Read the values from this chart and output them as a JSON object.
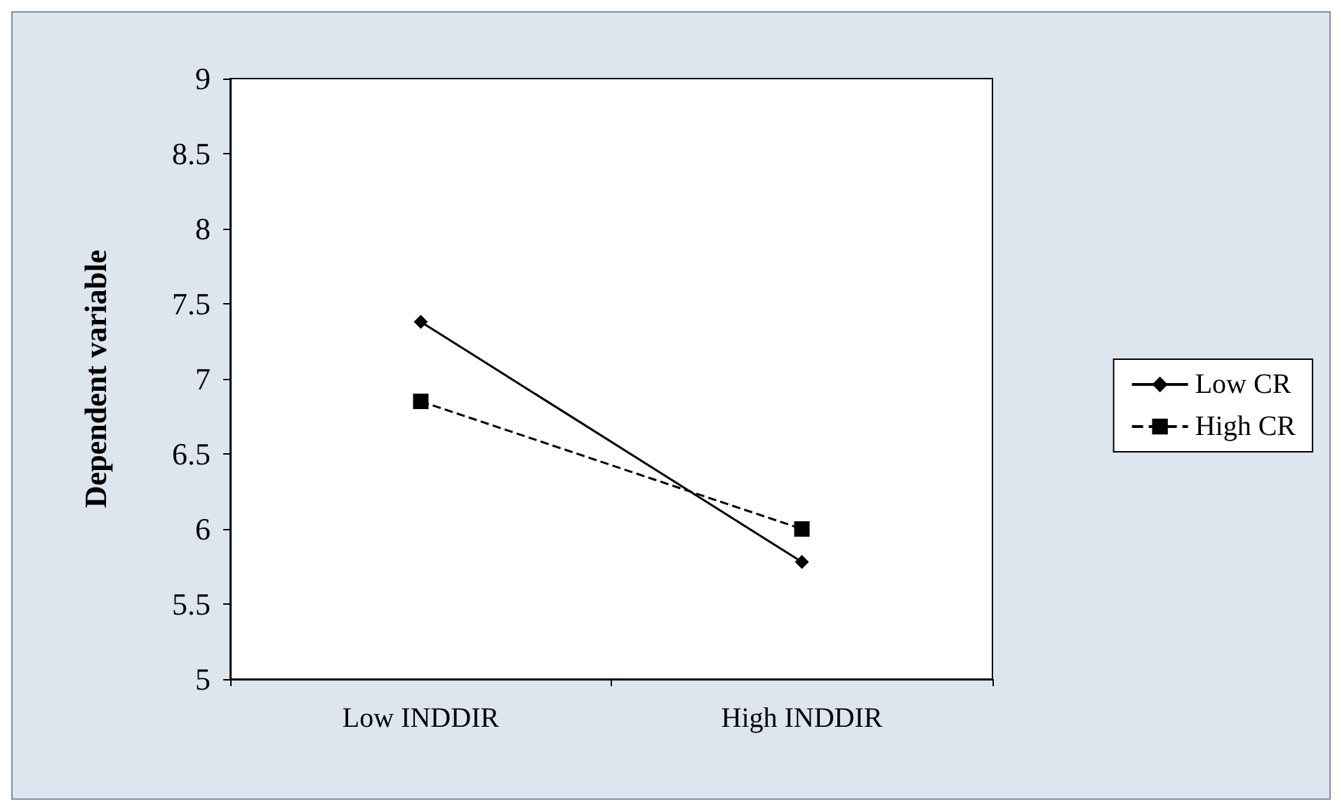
{
  "chart_data": {
    "type": "line",
    "ylabel": "Dependent variable",
    "categories": [
      "Low INDDIR",
      "High INDDIR"
    ],
    "series": [
      {
        "name": "Low CR",
        "color": "#000000",
        "values": [
          7.38,
          5.78
        ],
        "marker": "diamond",
        "line_style": "solid"
      },
      {
        "name": "High CR",
        "color": "#000000",
        "values": [
          6.85,
          6.0
        ],
        "marker": "square",
        "line_style": "dashed"
      }
    ],
    "ylim": [
      5,
      9
    ],
    "yticks": [
      5,
      5.5,
      6,
      6.5,
      7,
      7.5,
      8,
      8.5,
      9
    ],
    "grid": false,
    "legend": "right"
  }
}
